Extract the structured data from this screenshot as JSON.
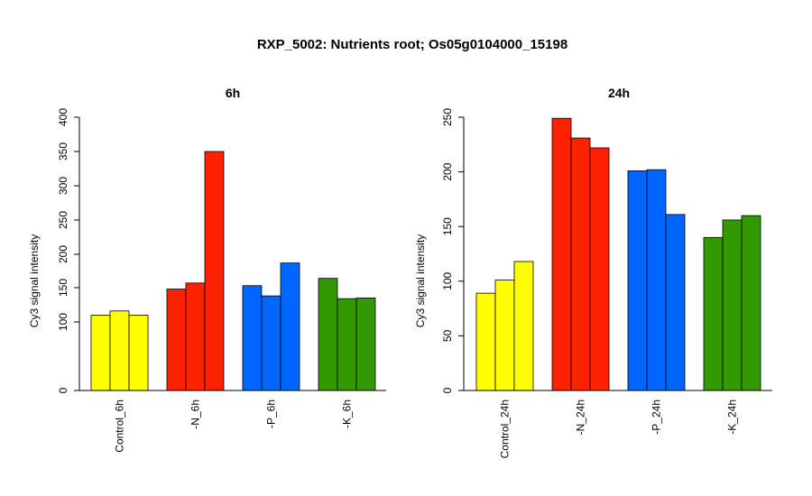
{
  "title": "RXP_5002: Nutrients root; Os05g0104000_15198",
  "chart_data": [
    {
      "type": "bar",
      "title": "6h",
      "ylabel": "Cy3 signal intensity",
      "yticks": [
        0,
        100,
        150,
        200,
        250,
        300,
        350,
        400
      ],
      "ylim": [
        0,
        400
      ],
      "groups": [
        {
          "label": "Control_6h",
          "color": "#ffff00",
          "values": [
            110,
            116,
            110
          ]
        },
        {
          "label": "-N_6h",
          "color": "#ff2200",
          "values": [
            148,
            157,
            350
          ]
        },
        {
          "label": "-P_6h",
          "color": "#0066ff",
          "values": [
            153,
            138,
            187
          ]
        },
        {
          "label": "-K_6h",
          "color": "#339900",
          "values": [
            164,
            134,
            135
          ]
        }
      ]
    },
    {
      "type": "bar",
      "title": "24h",
      "ylabel": "Cy3 signal intensity",
      "yticks": [
        0,
        50,
        100,
        150,
        200,
        250
      ],
      "ylim": [
        0,
        250
      ],
      "groups": [
        {
          "label": "Control_24h",
          "color": "#ffff00",
          "values": [
            89,
            101,
            118
          ]
        },
        {
          "label": "-N_24h",
          "color": "#ff2200",
          "values": [
            249,
            231,
            222
          ]
        },
        {
          "label": "-P_24h",
          "color": "#0066ff",
          "values": [
            201,
            202,
            161
          ]
        },
        {
          "label": "-K_24h",
          "color": "#339900",
          "values": [
            140,
            156,
            160
          ]
        }
      ]
    }
  ]
}
